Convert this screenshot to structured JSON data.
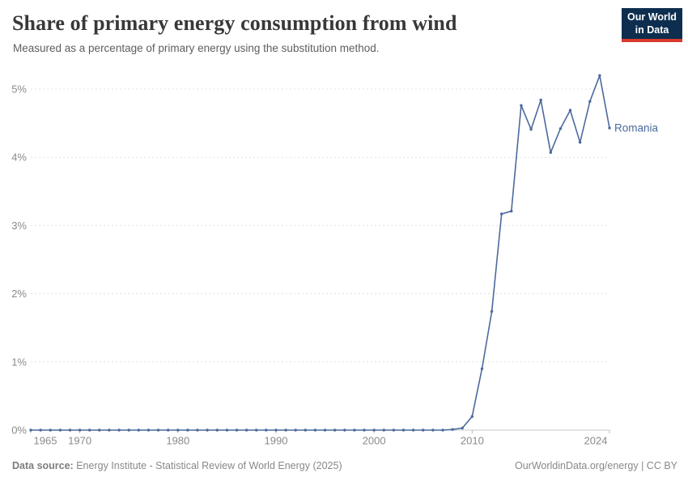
{
  "header": {
    "title": "Share of primary energy consumption from wind",
    "subtitle": "Measured as a percentage of primary energy using the substitution method.",
    "logo": {
      "line1": "Our World",
      "line2": "in Data"
    }
  },
  "chart_data": {
    "type": "line",
    "title": "Share of primary energy consumption from wind",
    "xlabel": "",
    "ylabel": "",
    "xlim": [
      1965,
      2024
    ],
    "ylim": [
      0,
      5.3
    ],
    "grid": "horizontal-dashed",
    "legend_position": "end-of-line-label",
    "x_tick_labels": [
      "1965",
      "1970",
      "1980",
      "1990",
      "2000",
      "2010",
      "2024"
    ],
    "x_tick_years": [
      1965,
      1970,
      1980,
      1990,
      2000,
      2010,
      2024
    ],
    "y_tick_labels": [
      "0%",
      "1%",
      "2%",
      "3%",
      "4%",
      "5%"
    ],
    "y_tick_values": [
      0,
      1,
      2,
      3,
      4,
      5
    ],
    "series": [
      {
        "name": "Romania",
        "color": "#4c6a9c",
        "x": [
          1965,
          1966,
          1967,
          1968,
          1969,
          1970,
          1971,
          1972,
          1973,
          1974,
          1975,
          1976,
          1977,
          1978,
          1979,
          1980,
          1981,
          1982,
          1983,
          1984,
          1985,
          1986,
          1987,
          1988,
          1989,
          1990,
          1991,
          1992,
          1993,
          1994,
          1995,
          1996,
          1997,
          1998,
          1999,
          2000,
          2001,
          2002,
          2003,
          2004,
          2005,
          2006,
          2007,
          2008,
          2009,
          2010,
          2011,
          2012,
          2013,
          2014,
          2015,
          2016,
          2017,
          2018,
          2019,
          2020,
          2021,
          2022,
          2023,
          2024
        ],
        "values": [
          0,
          0,
          0,
          0,
          0,
          0,
          0,
          0,
          0,
          0,
          0,
          0,
          0,
          0,
          0,
          0,
          0,
          0,
          0,
          0,
          0,
          0,
          0,
          0,
          0,
          0,
          0,
          0,
          0,
          0,
          0,
          0,
          0,
          0,
          0,
          0,
          0,
          0,
          0,
          0,
          0,
          0,
          0,
          0.01,
          0.03,
          0.2,
          0.9,
          1.74,
          3.17,
          3.21,
          4.76,
          4.41,
          4.84,
          4.07,
          4.42,
          4.69,
          4.22,
          4.82,
          5.2,
          4.43
        ]
      }
    ]
  },
  "footer": {
    "source_label": "Data source:",
    "source_text": "Energy Institute - Statistical Review of World Energy (2025)",
    "link_text": "OurWorldinData.org/energy | CC BY"
  },
  "colors": {
    "line": "#4c6a9c",
    "gridline": "#e0e0e0",
    "axis_line": "#c8c8c8",
    "tick_text": "#8a8a8a",
    "logo_bg": "#0d2e4f",
    "logo_bar": "#d93a2b"
  }
}
